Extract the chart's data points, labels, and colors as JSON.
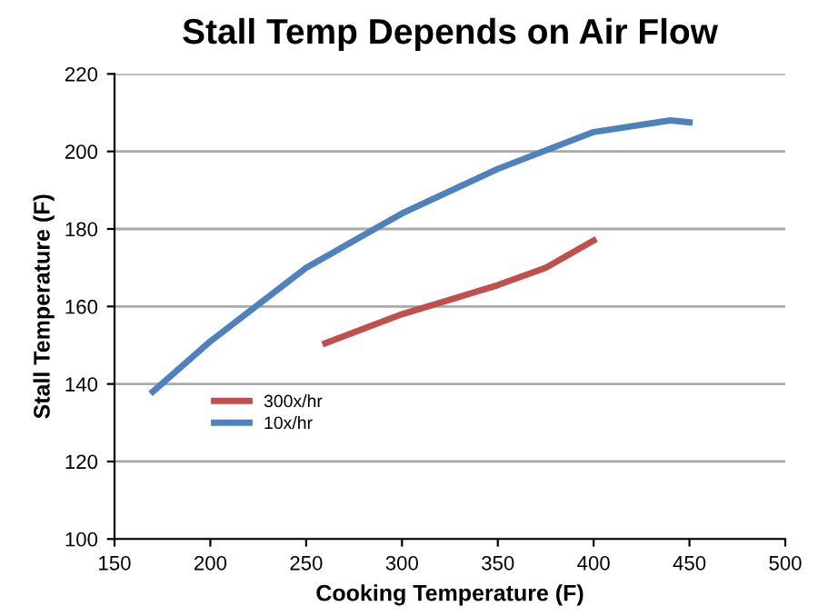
{
  "chart_data": {
    "type": "line",
    "title": "Stall Temp Depends on Air Flow",
    "xlabel": "Cooking Temperature (F)",
    "ylabel": "Stall Temperature (F)",
    "xlim": [
      150,
      500
    ],
    "xticks": [
      150,
      200,
      250,
      300,
      350,
      400,
      450,
      500
    ],
    "ylim": [
      100,
      220
    ],
    "yticks": [
      100,
      120,
      140,
      160,
      180,
      200,
      220
    ],
    "grid": "y",
    "legend": "left",
    "line_style": "solid",
    "marker": "none",
    "series": [
      {
        "name": "300x/hr",
        "color": "#c0504d",
        "x": [
          260,
          300,
          350,
          375,
          400
        ],
        "values": [
          150.5,
          158,
          165.5,
          170,
          177
        ]
      },
      {
        "name": "10x/hr",
        "color": "#4f81bd",
        "x": [
          170,
          200,
          250,
          300,
          350,
          400,
          440,
          450
        ],
        "values": [
          138,
          151,
          170,
          184,
          195.5,
          205,
          208,
          207.5
        ]
      }
    ]
  }
}
